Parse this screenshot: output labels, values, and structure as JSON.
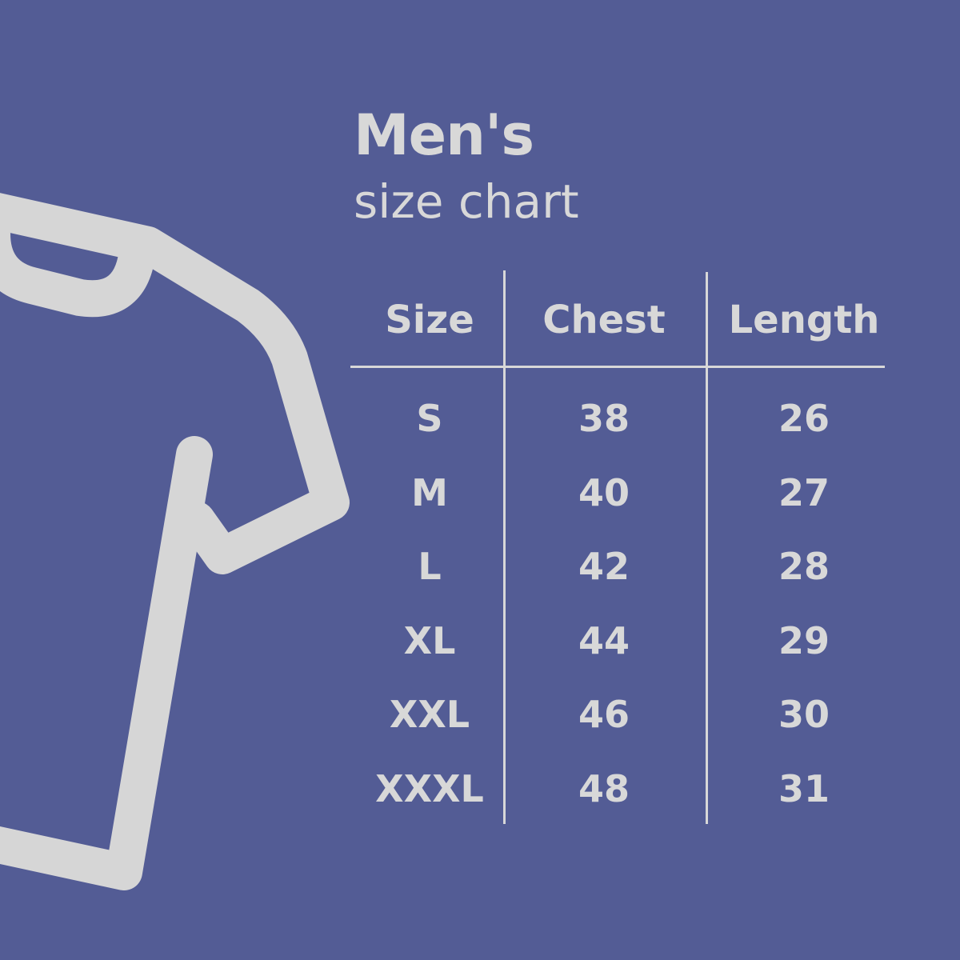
{
  "title": "Men's",
  "subtitle": "size chart",
  "colors": {
    "background": "#535c95",
    "foreground": "#d8d8d8"
  },
  "illustration": "t-shirt-outline-icon",
  "table": {
    "headers": [
      "Size",
      "Chest",
      "Length"
    ],
    "rows": [
      [
        "S",
        "38",
        "26"
      ],
      [
        "M",
        "40",
        "27"
      ],
      [
        "L",
        "42",
        "28"
      ],
      [
        "XL",
        "44",
        "29"
      ],
      [
        "XXL",
        "46",
        "30"
      ],
      [
        "XXXL",
        "48",
        "31"
      ]
    ]
  }
}
